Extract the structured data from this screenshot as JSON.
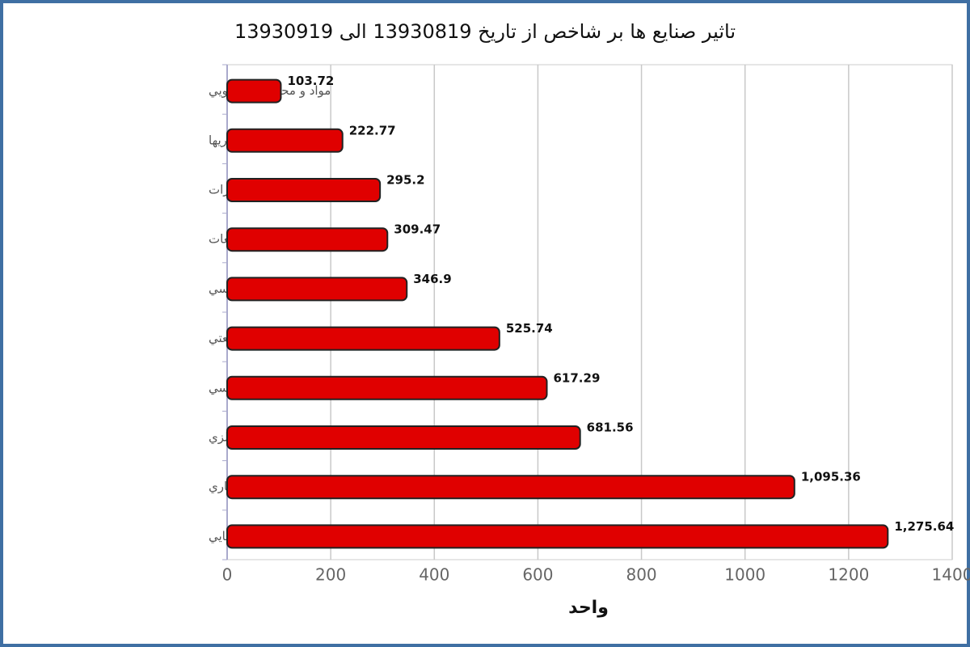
{
  "chart_data": {
    "type": "bar",
    "orientation": "horizontal",
    "title": "تاثیر صنایع ها بر شاخص از تاریخ 13930819 الی 13930919",
    "x_label": "واحد",
    "categories": [
      "مواد و محصولات دارويي",
      "سرمايه گذاريها",
      "مخابرات",
      "خودرو و ساخت قطعات",
      "خدمات فني و مهندسي",
      "شركتهاي چند رشته اي صنعتي",
      "فلزات اساسي",
      "استخراج كانه هاي فلزي",
      "بانكها و موسسات اعتباري",
      "محصولات شيميايي"
    ],
    "values": [
      103.72,
      222.77,
      295.2,
      309.47,
      346.9,
      525.74,
      617.29,
      681.56,
      1095.36,
      1275.64
    ],
    "value_labels": [
      "103.72",
      "222.77",
      "295.2",
      "309.47",
      "346.9",
      "525.74",
      "617.29",
      "681.56",
      "1,095.36",
      "1,275.64"
    ],
    "color": "#e00000",
    "xlim": [
      0,
      1400
    ],
    "xticks": [
      0,
      200,
      400,
      600,
      800,
      1000,
      1200,
      1400
    ],
    "grid": true
  }
}
